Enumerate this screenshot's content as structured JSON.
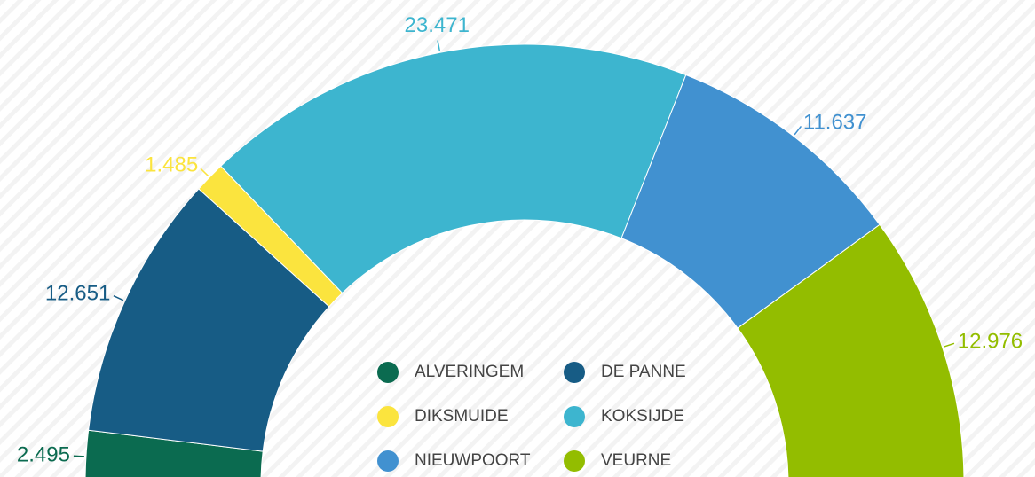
{
  "chart_data": {
    "type": "half-donut",
    "categories": [
      "ALVERINGEM",
      "DE PANNE",
      "DIKSMUIDE",
      "KOKSIJDE",
      "NIEUWPOORT",
      "VEURNE"
    ],
    "values": [
      2495,
      12651,
      1485,
      23471,
      11637,
      12976
    ],
    "value_labels": [
      "2.495",
      "12.651",
      "1.485",
      "23.471",
      "11.637",
      "12.976"
    ],
    "colors": [
      "#0b6b50",
      "#175c85",
      "#fbe43e",
      "#3db5cf",
      "#4191d0",
      "#93bd00"
    ]
  }
}
